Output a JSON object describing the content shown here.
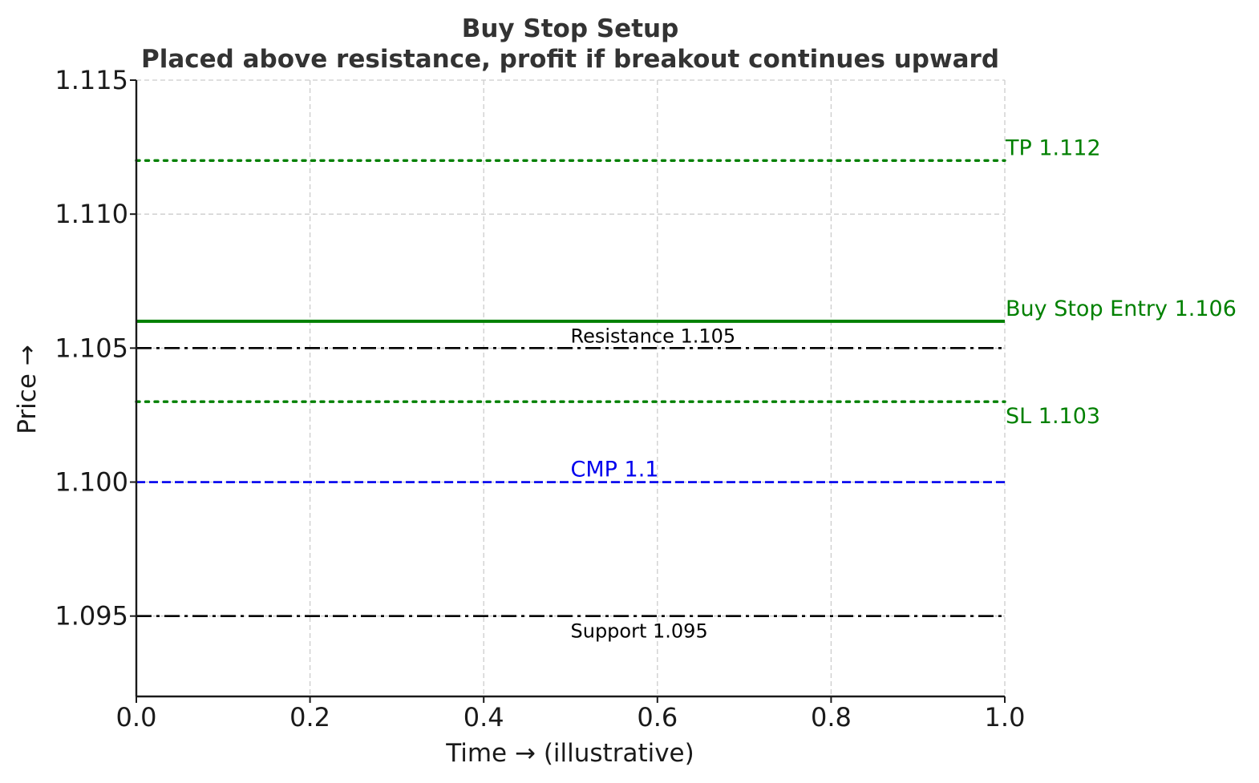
{
  "chart_data": {
    "type": "line",
    "title": "Buy Stop Setup",
    "subtitle": "Placed above resistance, profit if breakout continues upward",
    "xlabel": "Time → (illustrative)",
    "ylabel": "Price →",
    "xlim": [
      0,
      1
    ],
    "ylim": [
      1.092,
      1.115
    ],
    "xticks": [
      0.0,
      0.2,
      0.4,
      0.6,
      0.8,
      1.0
    ],
    "xtick_labels": [
      "0.0",
      "0.2",
      "0.4",
      "0.6",
      "0.8",
      "1.0"
    ],
    "yticks": [
      1.095,
      1.1,
      1.105,
      1.11,
      1.115
    ],
    "ytick_labels": [
      "1.095",
      "1.100",
      "1.105",
      "1.110",
      "1.115"
    ],
    "grid": true,
    "levels": [
      {
        "key": "tp",
        "label": "TP 1.112",
        "y": 1.112,
        "color": "#008000",
        "style": "dotted",
        "label_pos": "right",
        "size": "large"
      },
      {
        "key": "entry",
        "label": "Buy Stop Entry 1.106",
        "y": 1.106,
        "color": "#008000",
        "style": "solid",
        "label_pos": "right",
        "size": "large"
      },
      {
        "key": "resistance",
        "label": "Resistance 1.105",
        "y": 1.105,
        "color": "#000000",
        "style": "dashdot",
        "label_pos": "mid-above",
        "size": "small"
      },
      {
        "key": "sl",
        "label": "SL 1.103",
        "y": 1.103,
        "color": "#008000",
        "style": "dotted",
        "label_pos": "right-below",
        "size": "large"
      },
      {
        "key": "cmp",
        "label": "CMP 1.1",
        "y": 1.1,
        "color": "#0000ee",
        "style": "dashed",
        "label_pos": "mid-above",
        "size": "large"
      },
      {
        "key": "support",
        "label": "Support 1.095",
        "y": 1.095,
        "color": "#000000",
        "style": "dashdot",
        "label_pos": "mid-below",
        "size": "small"
      }
    ]
  }
}
